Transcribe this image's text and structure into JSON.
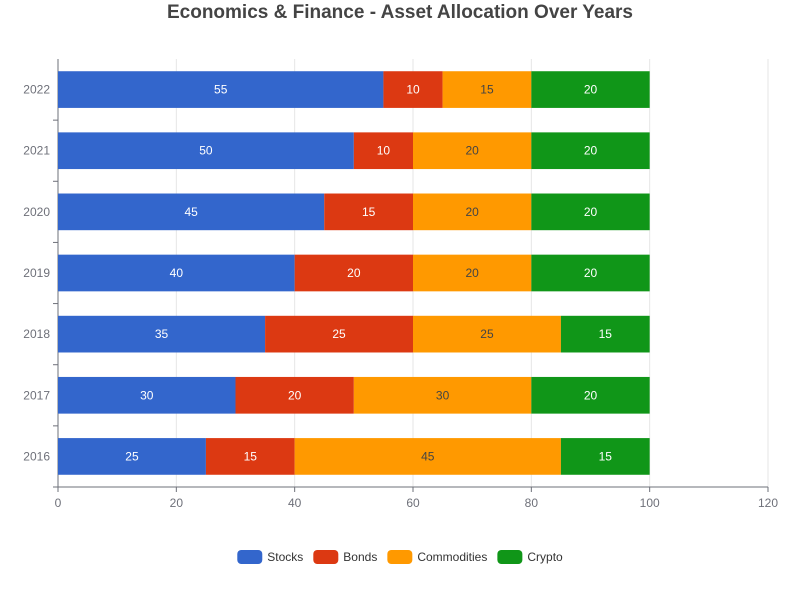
{
  "chart_data": {
    "type": "bar",
    "orientation": "horizontal",
    "stacked": true,
    "title": "Economics & Finance - Asset Allocation Over Years",
    "categories": [
      "2016",
      "2017",
      "2018",
      "2019",
      "2020",
      "2021",
      "2022"
    ],
    "series": [
      {
        "name": "Stocks",
        "color": "#3366cc",
        "label_color": "#ffffff",
        "values": [
          25,
          30,
          35,
          40,
          45,
          50,
          55
        ]
      },
      {
        "name": "Bonds",
        "color": "#dc3912",
        "label_color": "#ffffff",
        "values": [
          15,
          20,
          25,
          20,
          15,
          10,
          10
        ]
      },
      {
        "name": "Commodities",
        "color": "#ff9900",
        "label_color": "#444444",
        "values": [
          45,
          30,
          25,
          20,
          20,
          20,
          15
        ]
      },
      {
        "name": "Crypto",
        "color": "#109618",
        "label_color": "#ffffff",
        "values": [
          15,
          20,
          15,
          20,
          20,
          20,
          20
        ]
      }
    ],
    "xlim": [
      0,
      120
    ],
    "xticks": [
      0,
      20,
      40,
      60,
      80,
      100,
      120
    ],
    "xlabel": "",
    "ylabel": "",
    "grid": true,
    "legend_position": "bottom-center"
  }
}
